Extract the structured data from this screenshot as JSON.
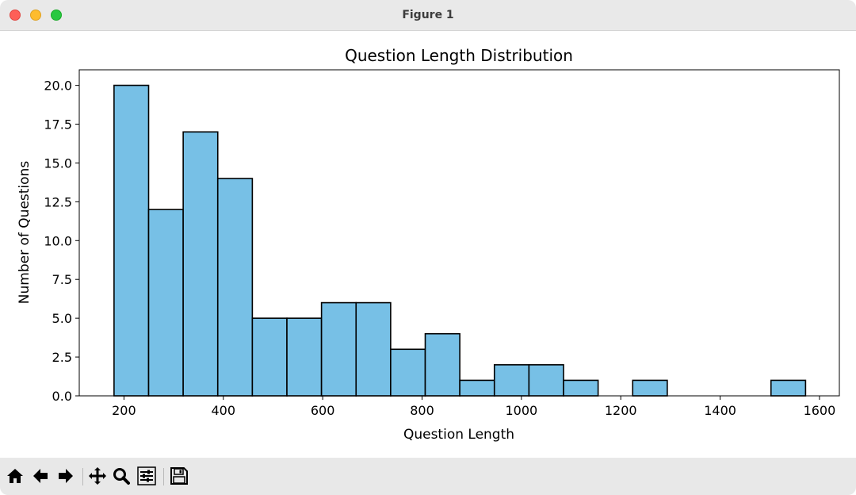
{
  "window": {
    "title": "Figure 1"
  },
  "chart_data": {
    "type": "bar",
    "title": "Question Length Distribution",
    "xlabel": "Question Length",
    "ylabel": "Number of Questions",
    "xlim": [
      110,
      1640
    ],
    "ylim": [
      0,
      21
    ],
    "xticks": [
      200,
      400,
      600,
      800,
      1000,
      1200,
      1400,
      1600
    ],
    "yticks": [
      0.0,
      2.5,
      5.0,
      7.5,
      10.0,
      12.5,
      15.0,
      17.5,
      20.0
    ],
    "bin_edges": [
      180,
      249.6,
      319.2,
      388.8,
      458.4,
      528,
      597.6,
      667.2,
      736.8,
      806.4,
      876,
      945.6,
      1015.2,
      1084.8,
      1154.4,
      1224,
      1293.6,
      1363.2,
      1432.8,
      1502.4,
      1572
    ],
    "values": [
      20,
      12,
      17,
      14,
      5,
      5,
      6,
      6,
      3,
      4,
      1,
      2,
      2,
      1,
      0,
      1,
      0,
      0,
      0,
      1
    ],
    "bar_color": "#77c0e6",
    "edge_color": "#000000",
    "grid": false
  },
  "toolbar": {
    "buttons": [
      {
        "name": "home-button",
        "icon": "home-icon"
      },
      {
        "name": "back-button",
        "icon": "arrow-left-icon"
      },
      {
        "name": "forward-button",
        "icon": "arrow-right-icon"
      },
      {
        "name": "pan-button",
        "icon": "move-icon"
      },
      {
        "name": "zoom-button",
        "icon": "magnifier-icon"
      },
      {
        "name": "configure-subplots-button",
        "icon": "sliders-icon"
      },
      {
        "name": "save-button",
        "icon": "floppy-disk-icon"
      }
    ]
  }
}
